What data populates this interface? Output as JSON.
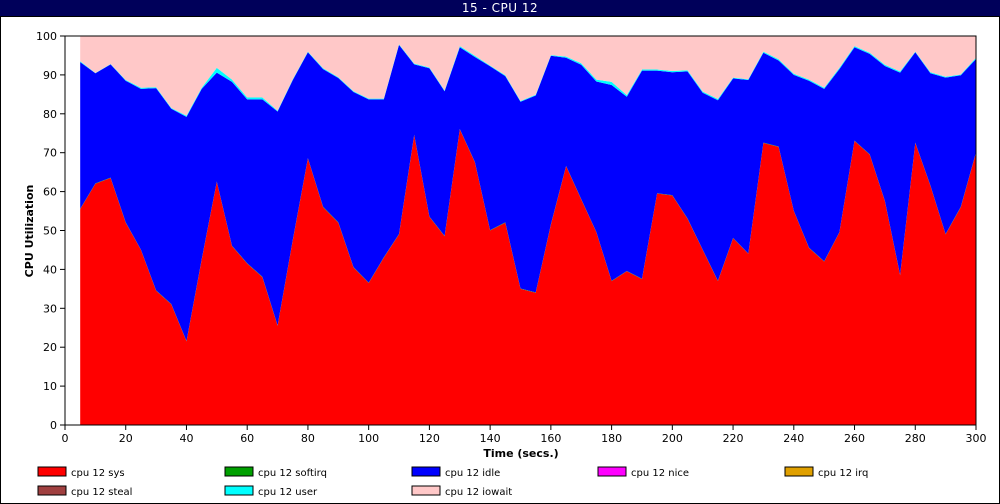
{
  "window": {
    "title": "15 - CPU 12"
  },
  "chart_data": {
    "type": "area",
    "stacked": true,
    "xlabel": "Time (secs.)",
    "ylabel": "CPU Utilization",
    "xlim": [
      0,
      300
    ],
    "ylim": [
      0,
      100
    ],
    "x_ticks": [
      0,
      20,
      40,
      60,
      80,
      100,
      120,
      140,
      160,
      180,
      200,
      220,
      240,
      260,
      280,
      300
    ],
    "y_ticks": [
      0,
      10,
      20,
      30,
      40,
      50,
      60,
      70,
      80,
      90,
      100
    ],
    "grid": false,
    "legend_placement": "bottom",
    "x": [
      5,
      10,
      15,
      20,
      25,
      30,
      35,
      40,
      45,
      50,
      55,
      60,
      65,
      70,
      75,
      80,
      85,
      90,
      95,
      100,
      105,
      110,
      115,
      120,
      125,
      130,
      135,
      140,
      145,
      150,
      155,
      160,
      165,
      170,
      175,
      180,
      185,
      190,
      195,
      200,
      205,
      210,
      215,
      220,
      225,
      230,
      235,
      240,
      245,
      250,
      255,
      260,
      265,
      270,
      275,
      280,
      285,
      290,
      295,
      300
    ],
    "series": [
      {
        "name": "cpu 12 sys",
        "color": "#ff0000",
        "values": [
          55.5,
          62,
          63.5,
          52,
          45,
          34.5,
          31,
          21.5,
          42.5,
          62.5,
          46,
          41.5,
          38,
          25.5,
          47.5,
          68.5,
          56,
          52,
          40.5,
          36.5,
          43,
          49,
          74.5,
          53.5,
          48.5,
          76,
          67.5,
          50,
          52,
          35,
          34,
          51.5,
          66.5,
          58,
          49.5,
          37,
          39.5,
          37.5,
          59.5,
          59,
          53,
          45,
          37,
          48,
          44,
          72.5,
          71.5,
          55,
          45.5,
          42,
          49.5,
          73,
          69.5,
          57.5,
          38.5,
          72.5,
          61.5,
          49,
          56,
          70
        ]
      },
      {
        "name": "cpu 12 softirq",
        "color": "#00a000",
        "values": [
          0.1,
          0.1,
          0.1,
          0.1,
          0.1,
          0.1,
          0.1,
          0.1,
          0.1,
          0.1,
          0.1,
          0.1,
          0.1,
          0.1,
          0.1,
          0.1,
          0.1,
          0.1,
          0.1,
          0.1,
          0.1,
          0.1,
          0.1,
          0.1,
          0.1,
          0.1,
          0.1,
          0.1,
          0.1,
          0.1,
          0.1,
          0.1,
          0.1,
          0.1,
          0.1,
          0.1,
          0.1,
          0.1,
          0.1,
          0.1,
          0.1,
          0.1,
          0.1,
          0.1,
          0.1,
          0.1,
          0.1,
          0.1,
          0.1,
          0.1,
          0.1,
          0.1,
          0.1,
          0.1,
          0.1,
          0.1,
          0.1,
          0.1,
          0.1,
          0.1
        ]
      },
      {
        "name": "cpu 12 idle",
        "color": "#0000ff",
        "values": [
          37.7,
          28.3,
          29.1,
          36.4,
          41.3,
          52,
          50.2,
          57.6,
          43.8,
          28,
          42.1,
          42.1,
          45.6,
          55,
          41.1,
          27.2,
          35.4,
          37.1,
          45,
          47.1,
          40.6,
          48.6,
          18.1,
          38.1,
          37.2,
          21,
          27,
          42.1,
          37.6,
          48,
          50.6,
          43.3,
          27.8,
          34.5,
          38.7,
          50.3,
          44.8,
          53.5,
          31.5,
          31.6,
          37.8,
          40.3,
          46.4,
          41,
          44.6,
          23.1,
          22.1,
          34.9,
          42.9,
          44.3,
          41.9,
          24,
          25.8,
          34.7,
          52,
          23.2,
          28.8,
          40.2,
          33.8,
          24
        ]
      },
      {
        "name": "cpu 12 nice",
        "color": "#ff00ff",
        "values": [
          0,
          0,
          0,
          0,
          0,
          0,
          0,
          0,
          0,
          0,
          0,
          0,
          0,
          0,
          0,
          0,
          0,
          0,
          0,
          0,
          0,
          0,
          0,
          0,
          0,
          0,
          0,
          0,
          0,
          0,
          0,
          0,
          0,
          0,
          0,
          0,
          0,
          0,
          0,
          0,
          0,
          0,
          0,
          0,
          0,
          0,
          0,
          0,
          0,
          0,
          0,
          0,
          0,
          0,
          0,
          0,
          0,
          0,
          0,
          0
        ]
      },
      {
        "name": "cpu 12 irq",
        "color": "#e0a000",
        "values": [
          0,
          0,
          0,
          0,
          0,
          0,
          0,
          0,
          0,
          0,
          0,
          0,
          0,
          0,
          0,
          0,
          0,
          0,
          0,
          0,
          0,
          0,
          0,
          0,
          0,
          0,
          0,
          0,
          0,
          0,
          0,
          0,
          0,
          0,
          0,
          0,
          0,
          0,
          0,
          0,
          0,
          0,
          0,
          0,
          0,
          0,
          0,
          0,
          0,
          0,
          0,
          0,
          0,
          0,
          0,
          0,
          0,
          0,
          0,
          0
        ]
      },
      {
        "name": "cpu 12 steal",
        "color": "#a04040",
        "values": [
          0,
          0,
          0,
          0,
          0,
          0,
          0,
          0,
          0,
          0,
          0,
          0,
          0,
          0,
          0,
          0,
          0,
          0,
          0,
          0,
          0,
          0,
          0,
          0,
          0,
          0,
          0,
          0,
          0,
          0,
          0,
          0,
          0,
          0,
          0,
          0,
          0,
          0,
          0,
          0,
          0,
          0,
          0,
          0,
          0,
          0,
          0,
          0,
          0,
          0,
          0,
          0,
          0,
          0,
          0,
          0,
          0,
          0,
          0,
          0
        ]
      },
      {
        "name": "cpu 12 user",
        "color": "#00ffff",
        "values": [
          0.2,
          0.1,
          0.1,
          0.2,
          0.3,
          0.2,
          0.2,
          0.3,
          0.3,
          1.2,
          0.6,
          0.5,
          0.5,
          0.2,
          0.2,
          0.2,
          0.2,
          0.2,
          0.2,
          0.2,
          0.2,
          0.2,
          0.2,
          0.2,
          0.2,
          0.3,
          0.3,
          0.2,
          0.2,
          0.2,
          0.2,
          0.2,
          0.3,
          0.4,
          0.5,
          0.8,
          0.4,
          0.3,
          0.3,
          0.3,
          0.3,
          0.3,
          0.3,
          0.2,
          0.2,
          0.3,
          0.3,
          0.3,
          0.3,
          0.3,
          0.3,
          0.3,
          0.3,
          0.3,
          0.3,
          0.2,
          0.3,
          0.2,
          0.2,
          0.3
        ]
      },
      {
        "name": "cpu 12 iowait",
        "color": "#ffc8c8",
        "values": [
          6.5,
          9.5,
          7.2,
          11.3,
          13.3,
          13.2,
          18.5,
          20.5,
          13.3,
          8.2,
          11.2,
          15.8,
          15.7,
          19.2,
          11.1,
          4,
          8.3,
          10.6,
          14.2,
          16.1,
          16.1,
          2.1,
          7.1,
          8.1,
          14,
          2.6,
          5.1,
          7.6,
          10.1,
          16.7,
          15.1,
          4.9,
          5.3,
          7,
          11.2,
          11.8,
          15.2,
          8.6,
          8.6,
          9,
          8.8,
          14.3,
          16.2,
          10.7,
          11.1,
          4,
          6,
          9.7,
          11.2,
          13.3,
          8.2,
          2.6,
          4.3,
          7.4,
          9.1,
          4,
          9.3,
          10.5,
          9.9,
          5.6
        ]
      }
    ]
  }
}
